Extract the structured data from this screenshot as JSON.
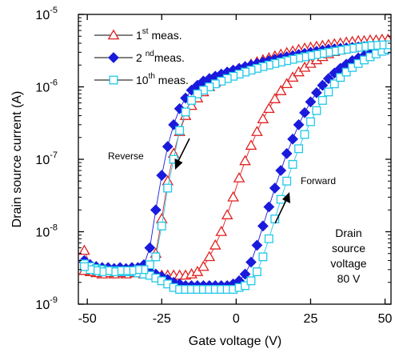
{
  "chart_data": {
    "type": "scatter",
    "xlabel": "Gate voltage  (V)",
    "ylabel": "Drain source current  (A)",
    "xlim": [
      -53,
      52
    ],
    "ylim_log10": [
      -9,
      -5
    ],
    "y_scale": "log",
    "x_ticks": [
      -50,
      -25,
      0,
      25,
      50
    ],
    "x_tick_labels": [
      "-50",
      "-25",
      "0",
      "25",
      "50"
    ],
    "y_ticks": [
      {
        "exp": -9,
        "base": "10",
        "sup": "-9"
      },
      {
        "exp": -8,
        "base": "10",
        "sup": "-8"
      },
      {
        "exp": -7,
        "base": "10",
        "sup": "-7"
      },
      {
        "exp": -6,
        "base": "10",
        "sup": "-6"
      },
      {
        "exp": -5,
        "base": "10",
        "sup": "-5"
      }
    ],
    "legend": {
      "position": "top-left",
      "entries": [
        {
          "text": "1",
          "sup": "st",
          "suffix": " meas."
        },
        {
          "text": "2 ",
          "sup": "nd",
          "suffix": "meas."
        },
        {
          "text": "10",
          "sup": "th",
          "suffix": " meas."
        }
      ]
    },
    "annotations": {
      "reverse": "Reverse",
      "forward": "Forward",
      "condition": [
        "Drain",
        "source",
        "voltage",
        "80 V"
      ]
    },
    "series": [
      {
        "name": "1st meas.",
        "marker": "triangle-open",
        "color": "#e02020",
        "reverse": {
          "x": [
            51,
            49,
            47,
            45,
            43,
            41,
            39,
            37,
            35,
            33,
            31,
            29,
            27,
            25,
            23,
            21,
            19,
            17,
            15,
            13,
            11,
            9,
            7,
            5,
            3,
            1,
            -1,
            -3,
            -5,
            -7,
            -9,
            -11,
            -13,
            -15,
            -17,
            -19,
            -21,
            -23,
            -25,
            -27,
            -29,
            -31,
            -33,
            -35,
            -37,
            -39,
            -41,
            -43,
            -45,
            -47,
            -49,
            -51
          ],
          "y": [
            4.5e-06,
            4.5e-06,
            4.4e-06,
            4.4e-06,
            4.3e-06,
            4.3e-06,
            4.2e-06,
            4.1e-06,
            4e-06,
            3.9e-06,
            3.8e-06,
            3.7e-06,
            3.6e-06,
            3.5e-06,
            3.4e-06,
            3.25e-06,
            3.1e-06,
            2.95e-06,
            2.8e-06,
            2.65e-06,
            2.5e-06,
            2.35e-06,
            2.2e-06,
            2.05e-06,
            1.9e-06,
            1.75e-06,
            1.6e-06,
            1.45e-06,
            1.3e-06,
            1.15e-06,
            1e-06,
            8.5e-07,
            7e-07,
            5.5e-07,
            4e-07,
            2.4e-07,
            1.2e-07,
            5e-08,
            1.5e-08,
            5e-09,
            3e-09,
            2.8e-09,
            2.7e-09,
            2.7e-09,
            2.6e-09,
            2.7e-09,
            2.6e-09,
            2.7e-09,
            2.6e-09,
            2.7e-09,
            2.8e-09,
            2.9e-09
          ]
        },
        "forward": {
          "x": [
            -51,
            -49,
            -47,
            -45,
            -43,
            -41,
            -39,
            -37,
            -35,
            -33,
            -31,
            -29,
            -27,
            -25,
            -23,
            -21,
            -19,
            -17,
            -15,
            -13,
            -11,
            -9,
            -7,
            -5,
            -3,
            -1,
            1,
            3,
            5,
            7,
            9,
            11,
            13,
            15,
            17,
            19,
            21,
            23,
            25,
            27,
            29,
            31,
            33,
            35,
            37,
            39,
            41,
            43,
            45,
            47,
            49,
            51
          ],
          "y": [
            5.5e-09,
            3.5e-09,
            3.2e-09,
            3e-09,
            2.9e-09,
            2.9e-09,
            2.8e-09,
            2.8e-09,
            2.7e-09,
            2.7e-09,
            2.6e-09,
            2.6e-09,
            2.5e-09,
            2.5e-09,
            2.5e-09,
            2.5e-09,
            2.5e-09,
            2.5e-09,
            2.6e-09,
            2.8e-09,
            3.3e-09,
            4.5e-09,
            6.5e-09,
            1e-08,
            1.7e-08,
            3e-08,
            5.5e-08,
            9.5e-08,
            1.55e-07,
            2.4e-07,
            3.6e-07,
            5e-07,
            6.8e-07,
            8.8e-07,
            1.1e-06,
            1.35e-06,
            1.6e-06,
            1.85e-06,
            2.1e-06,
            2.35e-06,
            2.6e-06,
            2.85e-06,
            3.05e-06,
            3.25e-06,
            3.45e-06,
            3.6e-06,
            3.75e-06,
            3.9e-06,
            4e-06,
            4.15e-06,
            4.3e-06,
            4.4e-06
          ]
        }
      },
      {
        "name": "2nd meas.",
        "marker": "diamond-filled",
        "color": "#1a1adc",
        "reverse": {
          "x": [
            51,
            49,
            47,
            45,
            43,
            41,
            39,
            37,
            35,
            33,
            31,
            29,
            27,
            25,
            23,
            21,
            19,
            17,
            15,
            13,
            11,
            9,
            7,
            5,
            3,
            1,
            -1,
            -3,
            -5,
            -7,
            -9,
            -11,
            -13,
            -15,
            -17,
            -19,
            -21,
            -23,
            -25,
            -27,
            -29,
            -31,
            -33,
            -35,
            -37,
            -39,
            -41,
            -43,
            -45,
            -47,
            -49,
            -51
          ],
          "y": [
            3.6e-06,
            3.6e-06,
            3.6e-06,
            3.6e-06,
            3.6e-06,
            3.55e-06,
            3.5e-06,
            3.45e-06,
            3.4e-06,
            3.35e-06,
            3.3e-06,
            3.2e-06,
            3.1e-06,
            3e-06,
            2.9e-06,
            2.8e-06,
            2.7e-06,
            2.6e-06,
            2.5e-06,
            2.4e-06,
            2.3e-06,
            2.2e-06,
            2.1e-06,
            2e-06,
            1.9e-06,
            1.8e-06,
            1.7e-06,
            1.6e-06,
            1.5e-06,
            1.4e-06,
            1.3e-06,
            1.2e-06,
            1.05e-06,
            9e-07,
            7e-07,
            5e-07,
            3e-07,
            1.5e-07,
            6e-08,
            2e-08,
            6e-09,
            3.5e-09,
            3.2e-09,
            3.2e-09,
            3.1e-09,
            3.2e-09,
            3.1e-09,
            3.2e-09,
            3.1e-09,
            3.2e-09,
            3.4e-09,
            3.8e-09
          ]
        },
        "forward": {
          "x": [
            -51,
            -49,
            -47,
            -45,
            -43,
            -41,
            -39,
            -37,
            -35,
            -33,
            -31,
            -29,
            -27,
            -25,
            -23,
            -21,
            -19,
            -17,
            -15,
            -13,
            -11,
            -9,
            -7,
            -5,
            -3,
            -1,
            1,
            3,
            5,
            7,
            9,
            11,
            13,
            15,
            17,
            19,
            21,
            23,
            25,
            27,
            29,
            31,
            33,
            35,
            37,
            39,
            41,
            43,
            45,
            47,
            49,
            51
          ],
          "y": [
            4e-09,
            3.5e-09,
            3.3e-09,
            3.2e-09,
            3.1e-09,
            3.1e-09,
            3e-09,
            3e-09,
            3e-09,
            2.9e-09,
            2.9e-09,
            2.8e-09,
            2.6e-09,
            2.4e-09,
            2.2e-09,
            2e-09,
            1.9e-09,
            1.8e-09,
            1.8e-09,
            1.8e-09,
            1.8e-09,
            1.8e-09,
            1.8e-09,
            1.8e-09,
            1.8e-09,
            1.9e-09,
            2.1e-09,
            2.6e-09,
            3.8e-09,
            6.5e-09,
            1.2e-08,
            2.2e-08,
            4e-08,
            7e-08,
            1.2e-07,
            1.9e-07,
            3e-07,
            4.4e-07,
            6.2e-07,
            8.3e-07,
            1.05e-06,
            1.3e-06,
            1.55e-06,
            1.8e-06,
            2.05e-06,
            2.3e-06,
            2.5e-06,
            2.7e-06,
            2.9e-06,
            3.05e-06,
            3.2e-06,
            3.3e-06
          ]
        }
      },
      {
        "name": "10th meas.",
        "marker": "square-open",
        "color": "#20c8e8",
        "reverse": {
          "x": [
            51,
            49,
            47,
            45,
            43,
            41,
            39,
            37,
            35,
            33,
            31,
            29,
            27,
            25,
            23,
            21,
            19,
            17,
            15,
            13,
            11,
            9,
            7,
            5,
            3,
            1,
            -1,
            -3,
            -5,
            -7,
            -9,
            -11,
            -13,
            -15,
            -17,
            -19,
            -21,
            -23,
            -25,
            -27,
            -29,
            -31,
            -33,
            -35,
            -37,
            -39,
            -41,
            -43,
            -45,
            -47,
            -49,
            -51
          ],
          "y": [
            3.8e-06,
            3.8e-06,
            3.75e-06,
            3.7e-06,
            3.6e-06,
            3.5e-06,
            3.4e-06,
            3.3e-06,
            3.2e-06,
            3.1e-06,
            3e-06,
            2.9e-06,
            2.8e-06,
            2.7e-06,
            2.6e-06,
            2.5e-06,
            2.4e-06,
            2.3e-06,
            2.2e-06,
            2.1e-06,
            2e-06,
            1.9e-06,
            1.8e-06,
            1.7e-06,
            1.6e-06,
            1.5e-06,
            1.4e-06,
            1.3e-06,
            1.2e-06,
            1.1e-06,
            1e-06,
            9e-07,
            8e-07,
            6.5e-07,
            4.5e-07,
            2.5e-07,
            1e-07,
            4e-08,
            1.2e-08,
            4.5e-09,
            3.5e-09,
            3e-09,
            3e-09,
            2.9e-09,
            2.9e-09,
            2.9e-09,
            2.8e-09,
            2.9e-09,
            2.8e-09,
            2.9e-09,
            3e-09,
            3.3e-09
          ]
        },
        "forward": {
          "x": [
            -51,
            -49,
            -47,
            -45,
            -43,
            -41,
            -39,
            -37,
            -35,
            -33,
            -31,
            -29,
            -27,
            -25,
            -23,
            -21,
            -19,
            -17,
            -15,
            -13,
            -11,
            -9,
            -7,
            -5,
            -3,
            -1,
            1,
            3,
            5,
            7,
            9,
            11,
            13,
            15,
            17,
            19,
            21,
            23,
            25,
            27,
            29,
            31,
            33,
            35,
            37,
            39,
            41,
            43,
            45,
            47,
            49,
            51
          ],
          "y": [
            3.6e-09,
            3.3e-09,
            3.1e-09,
            3e-09,
            2.9e-09,
            2.9e-09,
            2.8e-09,
            2.8e-09,
            2.8e-09,
            2.7e-09,
            2.6e-09,
            2.5e-09,
            2.3e-09,
            2.1e-09,
            1.9e-09,
            1.7e-09,
            1.6e-09,
            1.6e-09,
            1.6e-09,
            1.6e-09,
            1.6e-09,
            1.6e-09,
            1.6e-09,
            1.6e-09,
            1.6e-09,
            1.6e-09,
            1.7e-09,
            1.8e-09,
            2.1e-09,
            2.8e-09,
            4.5e-09,
            8e-09,
            1.5e-08,
            2.8e-08,
            5e-08,
            8.5e-08,
            1.4e-07,
            2.2e-07,
            3.3e-07,
            4.7e-07,
            6.5e-07,
            8.5e-07,
            1.1e-06,
            1.35e-06,
            1.6e-06,
            1.85e-06,
            2.1e-06,
            2.35e-06,
            2.6e-06,
            2.85e-06,
            3.1e-06,
            3.3e-06
          ]
        }
      }
    ]
  }
}
